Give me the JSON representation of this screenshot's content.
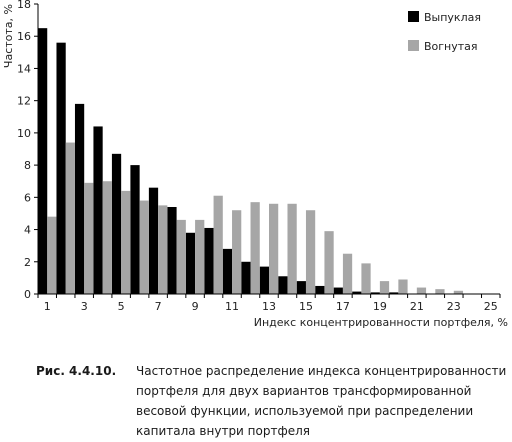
{
  "chart_data": {
    "type": "bar",
    "ylabel": "Частота, %",
    "xlabel": "Индекс концентрированности портфеля, %",
    "ylim": [
      0,
      18
    ],
    "yticks": [
      0,
      2,
      4,
      6,
      8,
      10,
      12,
      14,
      16,
      18
    ],
    "categories": [
      1,
      2,
      3,
      4,
      5,
      6,
      7,
      8,
      9,
      10,
      11,
      12,
      13,
      14,
      15,
      16,
      17,
      18,
      19,
      20,
      21,
      22,
      23,
      24,
      25
    ],
    "xtick_labels": [
      "1",
      "3",
      "5",
      "7",
      "9",
      "11",
      "13",
      "15",
      "17",
      "19",
      "21",
      "23",
      "25"
    ],
    "legend_position": "top-right",
    "grid": false,
    "series": [
      {
        "name": "Выпуклая",
        "color": "#000000",
        "values": [
          16.5,
          15.6,
          11.8,
          10.4,
          8.7,
          8.0,
          6.6,
          5.4,
          3.8,
          4.1,
          2.8,
          2.0,
          1.7,
          1.1,
          0.8,
          0.5,
          0.4,
          0.15,
          0.1,
          0.1,
          0,
          0,
          0,
          0,
          0
        ]
      },
      {
        "name": "Вогнутая",
        "color": "#a6a6a6",
        "values": [
          4.8,
          9.4,
          6.9,
          7.0,
          6.4,
          5.8,
          5.5,
          4.6,
          4.6,
          6.1,
          5.2,
          5.7,
          5.6,
          5.6,
          5.2,
          3.9,
          2.5,
          1.9,
          0.8,
          0.9,
          0.4,
          0.3,
          0.2,
          0,
          0
        ]
      }
    ]
  },
  "caption": {
    "label": "Рис. 4.4.10.",
    "text": "Частотное распределение индекса концентрированности портфеля для двух вариантов трансформированной весовой функции, используемой при распределении капитала внутри портфеля"
  }
}
